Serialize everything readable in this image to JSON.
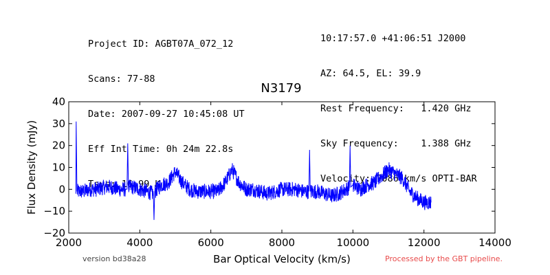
{
  "header": {
    "left": [
      "Project ID: AGBT07A_072_12",
      "Scans: 77-88",
      "Date: 2007-09-27 10:45:08 UT",
      "Eff Int Time: 0h 24m 22.8s",
      "Tsys: 16.99 K"
    ],
    "right": [
      "10:17:57.0 +41:06:51 J2000",
      "AZ: 64.5, EL: 39.9",
      "Rest Frequency:   1.420 GHz",
      "Sky Frequency:    1.388 GHz",
      "Velocity: 7086 km/s OPTI-BAR"
    ]
  },
  "footer": {
    "version": "version bd38a28",
    "pipeline": "Processed by the GBT pipeline."
  },
  "chart_data": {
    "type": "line",
    "title": "N3179",
    "xlabel": "Bar Optical Velocity (km/s)",
    "ylabel": "Flux Density (mJy)",
    "xlim": [
      2000,
      14000
    ],
    "ylim": [
      -20,
      40
    ],
    "xticks": [
      "2000",
      "4000",
      "6000",
      "8000",
      "10000",
      "12000",
      "14000"
    ],
    "yticks": [
      "−20",
      "−10",
      "0",
      "10",
      "20",
      "30",
      "40"
    ],
    "grid": false,
    "line_color": "#0000ff",
    "series": [
      {
        "x": [
          2200,
          2210,
          2230,
          2400,
          2600,
          2800,
          3000,
          3200,
          3400,
          3600,
          3640,
          3660,
          3680,
          3800,
          4000,
          4200,
          4380,
          4400,
          4420,
          4600,
          4800,
          5000,
          5200,
          5400,
          5600,
          5800,
          6000,
          6200,
          6400,
          6600,
          6800,
          7000,
          7200,
          7400,
          7600,
          7800,
          8000,
          8200,
          8400,
          8600,
          8760,
          8780,
          8800,
          9000,
          9200,
          9400,
          9600,
          9800,
          9900,
          9920,
          9940,
          10000,
          10200,
          10400,
          10600,
          10800,
          11000,
          11200,
          11400,
          11600,
          11800,
          12000,
          12200
        ],
        "y": [
          -2,
          31,
          -1,
          -1,
          0,
          0,
          1,
          1,
          0,
          0,
          0,
          21,
          1,
          1,
          0,
          -1,
          -2,
          -14,
          -1,
          2,
          3,
          8,
          3,
          0,
          -1,
          -1,
          -1,
          -1,
          3,
          9,
          3,
          0,
          0,
          -1,
          -2,
          -1,
          0,
          0,
          0,
          -1,
          -1,
          18,
          -1,
          -1,
          -2,
          -3,
          -2,
          0,
          1,
          20,
          1,
          2,
          0,
          2,
          3,
          6,
          9,
          7,
          5,
          -1,
          -4,
          -6,
          -6
        ]
      }
    ]
  }
}
